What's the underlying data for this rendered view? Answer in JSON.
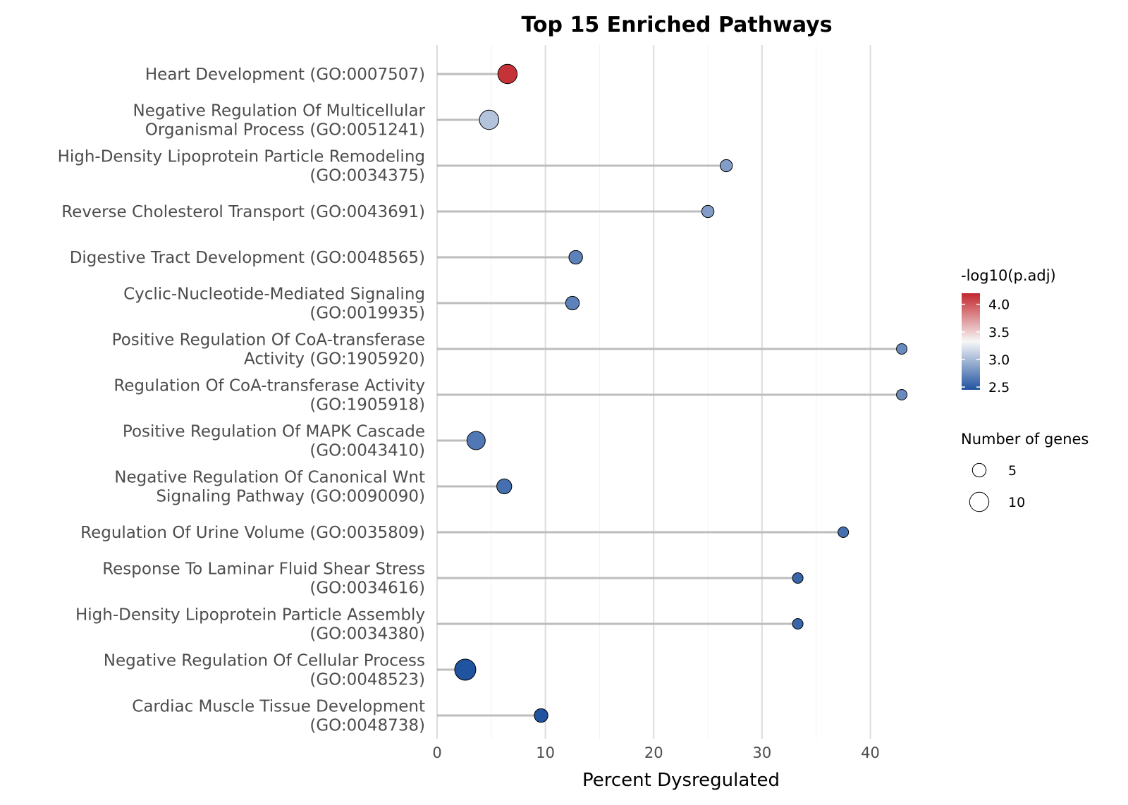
{
  "chart_data": {
    "type": "scatter",
    "title": "Top 15 Enriched Pathways",
    "xlabel": "Percent Dysregulated",
    "ylabel": "",
    "xlim": [
      0,
      44
    ],
    "xticks": [
      0,
      10,
      20,
      30,
      40
    ],
    "grid": true,
    "legend_position": "right",
    "points": [
      {
        "label": "Heart Development (GO:0007507)",
        "x": 6.5,
        "genes": 10,
        "neglog10_padj": 4.15
      },
      {
        "label": "Negative Regulation Of Multicellular Organismal Process (GO:0051241)",
        "x": 4.8,
        "genes": 10,
        "neglog10_padj": 3.05
      },
      {
        "label": "High-Density Lipoprotein Particle Remodeling (GO:0034375)",
        "x": 26.7,
        "genes": 4,
        "neglog10_padj": 2.85
      },
      {
        "label": "Reverse Cholesterol Transport (GO:0043691)",
        "x": 25.0,
        "genes": 4,
        "neglog10_padj": 2.85
      },
      {
        "label": "Digestive Tract Development (GO:0048565)",
        "x": 12.8,
        "genes": 5,
        "neglog10_padj": 2.7
      },
      {
        "label": "Cyclic-Nucleotide-Mediated Signaling (GO:0019935)",
        "x": 12.5,
        "genes": 5,
        "neglog10_padj": 2.7
      },
      {
        "label": "Positive Regulation Of CoA-transferase Activity (GO:1905920)",
        "x": 42.9,
        "genes": 3,
        "neglog10_padj": 2.75
      },
      {
        "label": "Regulation Of CoA-transferase Activity (GO:1905918)",
        "x": 42.9,
        "genes": 3,
        "neglog10_padj": 2.75
      },
      {
        "label": "Positive Regulation Of MAPK Cascade (GO:0043410)",
        "x": 3.6,
        "genes": 9,
        "neglog10_padj": 2.65
      },
      {
        "label": "Negative Regulation Of Canonical Wnt Signaling Pathway (GO:0090090)",
        "x": 6.2,
        "genes": 6,
        "neglog10_padj": 2.6
      },
      {
        "label": "Regulation Of Urine Volume (GO:0035809)",
        "x": 37.5,
        "genes": 3,
        "neglog10_padj": 2.6
      },
      {
        "label": "Response To Laminar Fluid Shear Stress (GO:0034616)",
        "x": 33.3,
        "genes": 3,
        "neglog10_padj": 2.55
      },
      {
        "label": "High-Density Lipoprotein Particle Assembly (GO:0034380)",
        "x": 33.3,
        "genes": 3,
        "neglog10_padj": 2.55
      },
      {
        "label": "Negative Regulation Of Cellular Process (GO:0048523)",
        "x": 2.6,
        "genes": 12,
        "neglog10_padj": 2.45
      },
      {
        "label": "Cardiac Muscle Tissue Development (GO:0048738)",
        "x": 9.6,
        "genes": 5,
        "neglog10_padj": 2.45
      }
    ],
    "color_legend": {
      "title": "-log10(p.adj)",
      "ticks": [
        4.0,
        3.5,
        3.0,
        2.5
      ],
      "tick_labels": [
        "4.0",
        "3.5",
        "3.0",
        "2.5"
      ],
      "range": [
        2.45,
        4.2
      ],
      "low_color": "#2053a0",
      "mid_color": "#f7f7f7",
      "high_color": "#c2272d"
    },
    "size_legend": {
      "title": "Number of genes",
      "values": [
        5,
        10
      ],
      "labels": [
        "5",
        "10"
      ]
    }
  }
}
